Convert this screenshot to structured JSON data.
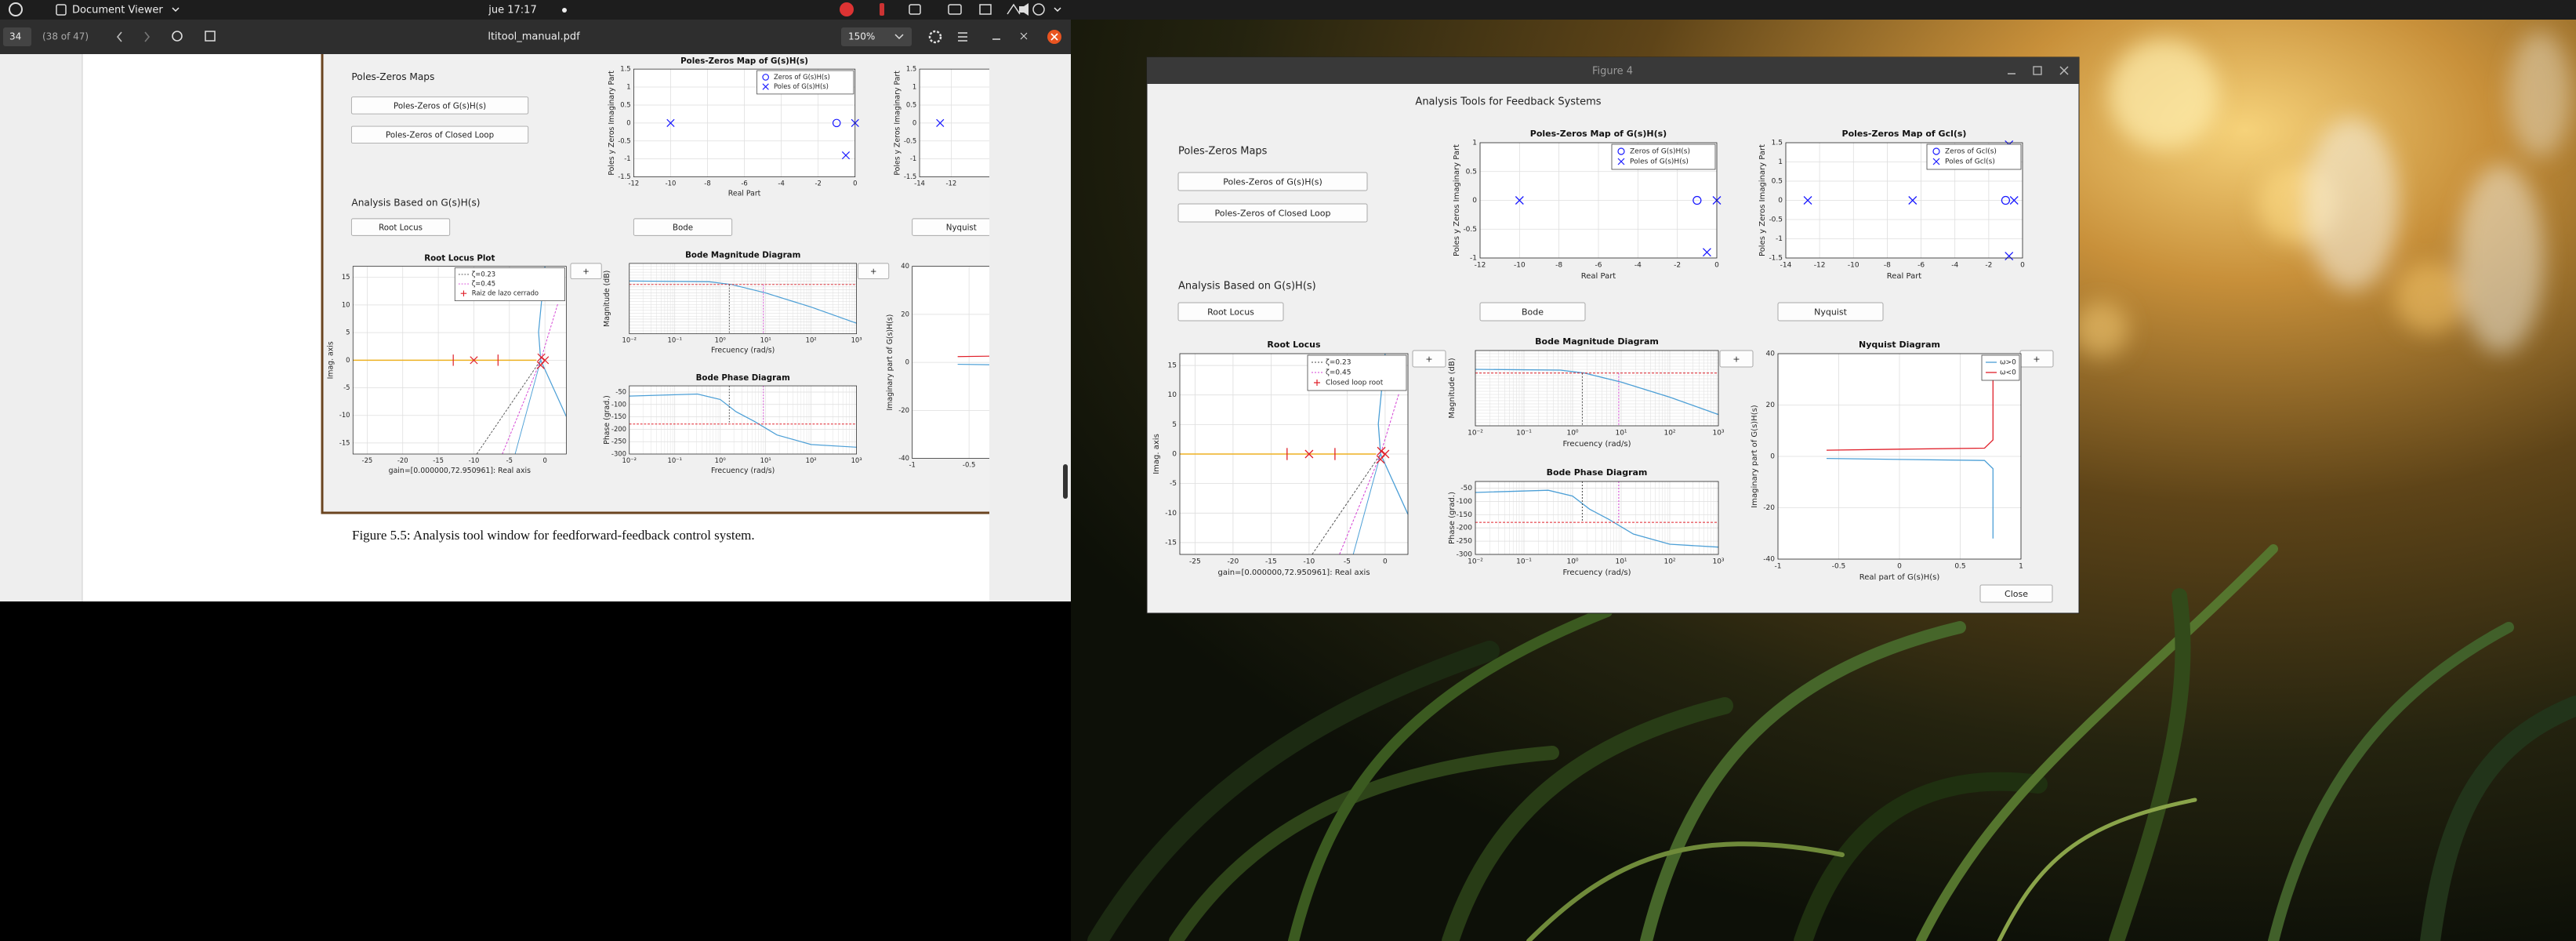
{
  "top_bar": {
    "app_name": "Document Viewer",
    "clock": "jue 17:17"
  },
  "viewer": {
    "page_number": "34",
    "page_count": "(38 of 47)",
    "file_name": "ltitool_manual.pdf",
    "zoom": "150%",
    "caption": "Figure 5.5: Analysis tool window for feedforward-feedback control system.",
    "figure": {
      "maps_label": "Poles-Zeros Maps",
      "map_buttons": [
        "Poles-Zeros of G(s)H(s)",
        "Poles-Zeros of Closed Loop"
      ],
      "analysis_label": "Analysis Based on G(s)H(s)",
      "analysis_buttons": [
        "Root Locus",
        "Bode",
        "Nyquist"
      ],
      "expand_button": "+",
      "plots": {
        "pz_open": {
          "title": "Poles-Zeros Map of G(s)H(s)",
          "xlabel": "Real Part",
          "ylabel": "Poles y Zeros Imaginary Part",
          "legend": [
            "Zeros of G(s)H(s)",
            "Poles of G(s)H(s)"
          ],
          "xlim": [
            -12,
            0
          ],
          "xticks": [
            -12,
            -10,
            -8,
            -6,
            -4,
            -2,
            0
          ],
          "ylim": [
            -1.5,
            1.5
          ],
          "yticks": [
            -1.5,
            -1,
            -0.5,
            0,
            0.5,
            1,
            1.5
          ],
          "grid": true,
          "zeros": {
            "x": [
              -1
            ],
            "y": [
              0
            ]
          },
          "poles": {
            "x": [
              -10,
              0,
              -0.5
            ],
            "y": [
              0,
              0,
              -0.9
            ]
          }
        },
        "pz_closed": {
          "ylabel": "Poles y Zeros Imaginary Part",
          "xlim": [
            -14,
            0
          ],
          "xticks": [
            -14,
            -12
          ],
          "ylim": [
            -1.5,
            1.5
          ],
          "yticks": [
            -1.5,
            -1,
            -0.5,
            0,
            0.5,
            1,
            1.5
          ],
          "grid": true,
          "poles": {
            "x": [
              -12.7
            ],
            "y": [
              0
            ]
          }
        },
        "root_locus": {
          "title": "Root Locus Plot",
          "xlabel": "gain=[0.000000,72.950961]: Real axis",
          "ylabel": "Imag. axis",
          "legend": [
            "ζ=0.23",
            "ζ=0.45",
            "Raiz de lazo cerrado"
          ],
          "xlim": [
            -27,
            3
          ],
          "xticks": [
            -25,
            -20,
            -15,
            -10,
            -5,
            0
          ],
          "ylim": [
            -17,
            17
          ],
          "yticks": [
            -15,
            -10,
            -5,
            0,
            5,
            10,
            15
          ],
          "grid": true,
          "poles": {
            "x": [
              -10,
              -0.5,
              0,
              -0.6
            ],
            "y": [
              0,
              0.5,
              0,
              -0.9
            ]
          }
        },
        "bode_mag": {
          "title": "Bode Magnitude Diagram",
          "xlabel": "Frecuency (rad/s)",
          "ylabel": "Magnitude (dB)",
          "log_x": true,
          "xlim": [
            0.01,
            1000
          ],
          "xticks": [
            {
              "value": 0.01,
              "label": "10⁻²"
            },
            {
              "value": 0.1,
              "label": "10⁻¹"
            },
            {
              "value": 1,
              "label": "10⁰"
            },
            {
              "value": 10,
              "label": "10¹"
            },
            {
              "value": 100,
              "label": "10²"
            },
            {
              "value": 1000,
              "label": "10³"
            }
          ],
          "grid": true
        },
        "bode_phase": {
          "title": "Bode Phase Diagram",
          "xlabel": "Frecuency (rad/s)",
          "ylabel": "Phase (grad.)",
          "log_x": true,
          "xlim": [
            0.01,
            1000
          ],
          "xticks": [
            {
              "value": 0.01,
              "label": "10⁻²"
            },
            {
              "value": 0.1,
              "label": "10⁻¹"
            },
            {
              "value": 1,
              "label": "10⁰"
            },
            {
              "value": 10,
              "label": "10¹"
            },
            {
              "value": 100,
              "label": "10²"
            },
            {
              "value": 1000,
              "label": "10³"
            }
          ],
          "ylim": [
            -300,
            -25
          ],
          "yticks": [
            -300,
            -250,
            -200,
            -150,
            -100,
            -50
          ],
          "grid": true
        },
        "nyquist": {
          "ylabel": "Imaginary part of G(s)H(s)",
          "xlim": [
            -1,
            1
          ],
          "xticks": [
            -1,
            -0.5
          ],
          "ylim": [
            -40,
            40
          ],
          "yticks": [
            -40,
            -20,
            0,
            20,
            40
          ],
          "grid": true
        }
      }
    }
  },
  "window": {
    "title": "Figure 4",
    "app": {
      "heading": "Analysis Tools for Feedback Systems",
      "maps_label": "Poles-Zeros Maps",
      "map_buttons": [
        "Poles-Zeros of G(s)H(s)",
        "Poles-Zeros of Closed Loop"
      ],
      "analysis_label": "Analysis Based on G(s)H(s)",
      "analysis_buttons": [
        "Root Locus",
        "Bode",
        "Nyquist"
      ],
      "expand_button": "+",
      "close_button": "Close",
      "plots": {
        "pz_open": {
          "title": "Poles-Zeros Map of G(s)H(s)",
          "xlabel": "Real Part",
          "ylabel": "Poles y Zeros Imaginary Part",
          "legend": [
            "Zeros of G(s)H(s)",
            "Poles of G(s)H(s)"
          ],
          "xlim": [
            -12,
            0
          ],
          "xticks": [
            -12,
            -10,
            -8,
            -6,
            -4,
            -2,
            0
          ],
          "ylim": [
            -1,
            1
          ],
          "yticks": [
            -1,
            -0.5,
            0,
            0.5,
            1
          ],
          "grid": true,
          "zeros": {
            "x": [
              -1
            ],
            "y": [
              0
            ]
          },
          "poles": {
            "x": [
              -10,
              0,
              -0.5
            ],
            "y": [
              0,
              0,
              -0.9
            ]
          }
        },
        "pz_closed": {
          "title": "Poles-Zeros Map of Gcl(s)",
          "xlabel": "Real Part",
          "ylabel": "Poles y Zeros Imaginary Part",
          "legend": [
            "Zeros of Gcl(s)",
            "Poles of Gcl(s)"
          ],
          "xlim": [
            -14,
            0
          ],
          "xticks": [
            -14,
            -12,
            -10,
            -8,
            -6,
            -4,
            -2,
            0
          ],
          "ylim": [
            -1.5,
            1.5
          ],
          "yticks": [
            -1.5,
            -1,
            -0.5,
            0,
            0.5,
            1,
            1.5
          ],
          "grid": true,
          "zeros": {
            "x": [
              -1
            ],
            "y": [
              0
            ]
          },
          "poles": {
            "x": [
              -12.7,
              -6.5,
              -0.5,
              -0.8,
              -0.8
            ],
            "y": [
              0,
              0,
              0,
              1.45,
              -1.45
            ]
          }
        },
        "root_locus": {
          "title": "Root Locus",
          "xlabel": "gain=[0.000000,72.950961]: Real axis",
          "ylabel": "Imag. axis",
          "legend": [
            "ζ=0.23",
            "ζ=0.45",
            "Closed loop root"
          ],
          "xlim": [
            -27,
            3
          ],
          "xticks": [
            -25,
            -20,
            -15,
            -10,
            -5,
            0
          ],
          "ylim": [
            -17,
            17
          ],
          "yticks": [
            -15,
            -10,
            -5,
            0,
            5,
            10,
            15
          ],
          "grid": true,
          "poles": {
            "x": [
              -10,
              -0.5,
              0,
              -0.6
            ],
            "y": [
              0,
              0.5,
              0,
              -0.9
            ]
          }
        },
        "bode_mag": {
          "title": "Bode Magnitude Diagram",
          "xlabel": "Frecuency (rad/s)",
          "ylabel": "Magnitude (dB)",
          "log_x": true,
          "xlim": [
            0.01,
            1000
          ],
          "xticks": [
            {
              "value": 0.01,
              "label": "10⁻²"
            },
            {
              "value": 0.1,
              "label": "10⁻¹"
            },
            {
              "value": 1,
              "label": "10⁰"
            },
            {
              "value": 10,
              "label": "10¹"
            },
            {
              "value": 100,
              "label": "10²"
            },
            {
              "value": 1000,
              "label": "10³"
            }
          ],
          "grid": true
        },
        "bode_phase": {
          "title": "Bode Phase Diagram",
          "xlabel": "Frecuency (rad/s)",
          "ylabel": "Phase (grad.)",
          "log_x": true,
          "xlim": [
            0.01,
            1000
          ],
          "xticks": [
            {
              "value": 0.01,
              "label": "10⁻²"
            },
            {
              "value": 0.1,
              "label": "10⁻¹"
            },
            {
              "value": 1,
              "label": "10⁰"
            },
            {
              "value": 10,
              "label": "10¹"
            },
            {
              "value": 100,
              "label": "10²"
            },
            {
              "value": 1000,
              "label": "10³"
            }
          ],
          "ylim": [
            -300,
            -25
          ],
          "yticks": [
            -300,
            -250,
            -200,
            -150,
            -100,
            -50
          ],
          "grid": true
        },
        "nyquist": {
          "title": "Nyquist Diagram",
          "xlabel": "Real part of G(s)H(s)",
          "ylabel": "Imaginary part of G(s)H(s)",
          "legend": [
            "ω>0",
            "ω<0"
          ],
          "xlim": [
            -1,
            1
          ],
          "xticks": [
            -1,
            -0.5,
            0,
            0.5,
            1
          ],
          "ylim": [
            -40,
            40
          ],
          "yticks": [
            -40,
            -20,
            0,
            20,
            40
          ],
          "grid": true
        }
      }
    }
  }
}
